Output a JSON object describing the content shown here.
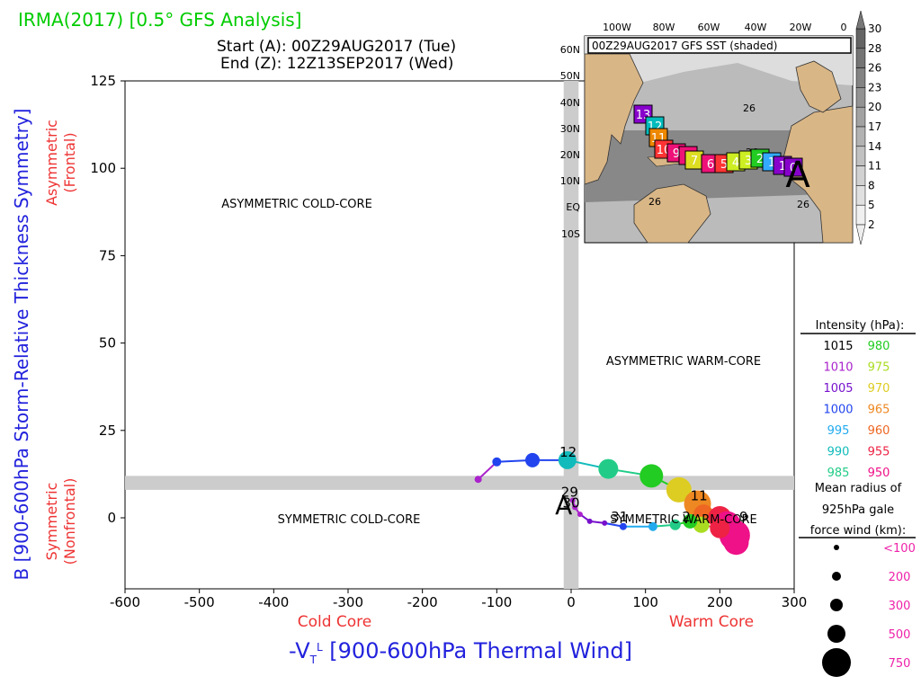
{
  "header": {
    "title": "IRMA(2017) [0.5° GFS Analysis]",
    "start_label": "Start (A): 00Z29AUG2017 (Tue)",
    "end_label": "End (Z): 12Z13SEP2017 (Wed)"
  },
  "colors": {
    "title": "#00cc00",
    "axis_x_label": "#2222dd",
    "axis_y_label": "#2222dd",
    "region_side": "#ee3333",
    "band": "#cccccc",
    "size_legend_labels": "#ee22aa"
  },
  "quadrants": {
    "top_left": "ASYMMETRIC COLD-CORE",
    "top_right": "ASYMMETRIC WARM-CORE",
    "bottom_left": "SYMMETRIC COLD-CORE",
    "bottom_right": "SYMMETRIC WARM-CORE"
  },
  "side_labels": {
    "y_top_line1": "Asymmetric",
    "y_top_line2": "(Frontal)",
    "y_bottom_line1": "Symmetric",
    "y_bottom_line2": "(Nonfrontal)",
    "x_left": "Cold Core",
    "x_right": "Warm Core"
  },
  "inset_map": {
    "title": "00Z29AUG2017 GFS SST (shaded)",
    "lon_labels": [
      "100W",
      "80W",
      "60W",
      "40W",
      "20W",
      "0"
    ],
    "lat_labels": [
      "60N",
      "50N",
      "40N",
      "30N",
      "20N",
      "10N",
      "EQ",
      "10S"
    ],
    "contour_labels": [
      "26",
      "26",
      "26",
      "26"
    ],
    "start_marker": "A",
    "colorbar_ticks": [
      "30",
      "28",
      "26",
      "23",
      "20",
      "17",
      "14",
      "11",
      "8",
      "5",
      "2"
    ],
    "track_labels": [
      {
        "text": "13",
        "color": "#8800cc"
      },
      {
        "text": "12",
        "color": "#00bbbb"
      },
      {
        "text": "11",
        "color": "#ee8800"
      },
      {
        "text": "10",
        "color": "#ff3333"
      },
      {
        "text": "9",
        "color": "#ee1177"
      },
      {
        "text": "8",
        "color": "#ee1177"
      },
      {
        "text": "7",
        "color": "#dddd22"
      },
      {
        "text": "6",
        "color": "#ee1177"
      },
      {
        "text": "5",
        "color": "#ff3333"
      },
      {
        "text": "4",
        "color": "#ccee22"
      },
      {
        "text": "3",
        "color": "#ccee22"
      },
      {
        "text": "2",
        "color": "#22cc22"
      },
      {
        "text": "1",
        "color": "#33aaff"
      },
      {
        "text": "1",
        "color": "#8800cc"
      },
      {
        "text": "0",
        "color": "#8800cc"
      }
    ]
  },
  "intensity_legend": {
    "title": "Intensity (hPa):",
    "rows": [
      {
        "left": "1015",
        "left_color": "#000000",
        "right": "980",
        "right_color": "#22cc22"
      },
      {
        "left": "1010",
        "left_color": "#aa22cc",
        "right": "975",
        "right_color": "#aadd22"
      },
      {
        "left": "1005",
        "left_color": "#7711cc",
        "right": "970",
        "right_color": "#ddcc22"
      },
      {
        "left": "1000",
        "left_color": "#2244ee",
        "right": "965",
        "right_color": "#ee8822"
      },
      {
        "left": "995",
        "left_color": "#22aaee",
        "right": "960",
        "right_color": "#ee6622"
      },
      {
        "left": "990",
        "left_color": "#11bbbb",
        "right": "955",
        "right_color": "#ee2244"
      },
      {
        "left": "985",
        "left_color": "#22cc88",
        "right": "950",
        "right_color": "#ee1188"
      }
    ]
  },
  "size_legend": {
    "title_line1": "Mean radius of",
    "title_line2": "925hPa gale",
    "title_line3": "force wind (km):",
    "items": [
      "<100",
      "200",
      "300",
      "500",
      "750"
    ]
  },
  "chart_data": {
    "type": "scatter",
    "xlabel": "-V_T^L [900-600hPa Thermal Wind]",
    "ylabel": "B [900-600hPa Storm-Relative Thickness Symmetry]",
    "xlim": [
      -600,
      300
    ],
    "ylim": [
      -20,
      125
    ],
    "xticks": [
      "-600",
      "-500",
      "-400",
      "-300",
      "-200",
      "-100",
      "0",
      "100",
      "200",
      "300"
    ],
    "yticks": [
      "125",
      "100",
      "75",
      "50",
      "25",
      "0"
    ],
    "ytick_values": [
      125,
      100,
      75,
      50,
      25,
      0
    ],
    "band_x": [
      -10,
      10
    ],
    "band_y": [
      8,
      12
    ],
    "grid": false,
    "legend": "right",
    "track": [
      {
        "x": -125,
        "y": 11,
        "color": "#aa22cc",
        "r": 4
      },
      {
        "x": -100,
        "y": 16,
        "color": "#2244ee",
        "r": 5
      },
      {
        "x": -52,
        "y": 16.5,
        "color": "#2244ee",
        "r": 8
      },
      {
        "x": -5,
        "y": 16.5,
        "color": "#11bbbb",
        "r": 10
      },
      {
        "x": 50,
        "y": 14,
        "color": "#22cc88",
        "r": 11
      },
      {
        "x": 108,
        "y": 12,
        "color": "#22cc22",
        "r": 13
      },
      {
        "x": 145,
        "y": 8,
        "color": "#ddcc22",
        "r": 14
      },
      {
        "x": 170,
        "y": 4,
        "color": "#ee8822",
        "r": 15
      },
      {
        "x": 178,
        "y": 1,
        "color": "#ee6622",
        "r": 11
      },
      {
        "x": 200,
        "y": 0,
        "color": "#ee2244",
        "r": 13
      },
      {
        "x": 210,
        "y": -2,
        "color": "#ee1188",
        "r": 15
      },
      {
        "x": 220,
        "y": -5,
        "color": "#ee1188",
        "r": 17
      },
      {
        "x": 222,
        "y": -7,
        "color": "#ee1188",
        "r": 14
      },
      {
        "x": 200,
        "y": -3,
        "color": "#ee2244",
        "r": 11
      },
      {
        "x": 175,
        "y": -2,
        "color": "#aadd22",
        "r": 9
      },
      {
        "x": 160,
        "y": -1,
        "color": "#22cc22",
        "r": 8
      },
      {
        "x": 140,
        "y": -2,
        "color": "#22cc88",
        "r": 6
      },
      {
        "x": 110,
        "y": -2.5,
        "color": "#22aaee",
        "r": 5
      },
      {
        "x": 70,
        "y": -2.5,
        "color": "#2244ee",
        "r": 4
      },
      {
        "x": 45,
        "y": -1.5,
        "color": "#7711cc",
        "r": 3
      },
      {
        "x": 25,
        "y": -1,
        "color": "#7711cc",
        "r": 3
      },
      {
        "x": 12,
        "y": 1,
        "color": "#aa22cc",
        "r": 3
      },
      {
        "x": 5,
        "y": 3,
        "color": "#aa22cc",
        "r": 3
      },
      {
        "x": 2,
        "y": 5,
        "color": "#aa22cc",
        "r": 3
      }
    ],
    "annotations": [
      {
        "text": "12",
        "x": -4,
        "y": 17.5
      },
      {
        "text": "11",
        "x": 172,
        "y": 5
      },
      {
        "text": "29",
        "x": -2,
        "y": 6
      },
      {
        "text": "30",
        "x": 0,
        "y": 3
      },
      {
        "text": "31",
        "x": 65,
        "y": -1
      },
      {
        "text": "2",
        "x": 155,
        "y": -1
      },
      {
        "text": "9",
        "x": 232,
        "y": -1
      }
    ],
    "start_marker": {
      "text": "A",
      "x": -10,
      "y": 2
    }
  }
}
